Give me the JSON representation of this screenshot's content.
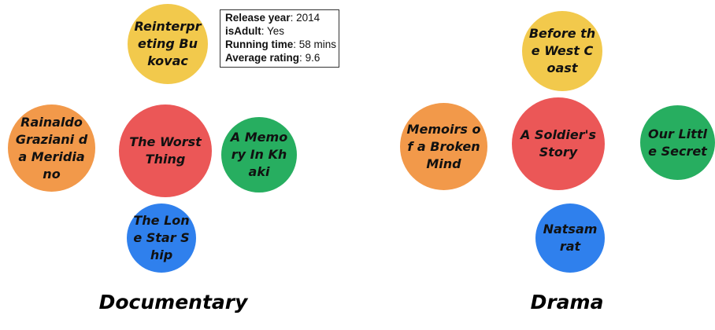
{
  "colors": {
    "yellow": "#f2c94c",
    "red": "#eb5757",
    "orange": "#f2994a",
    "green": "#27ae60",
    "blue": "#2f80ed"
  },
  "groups": [
    {
      "label": "Documentary",
      "nodes": [
        {
          "title": "Reinterpreting Bukovac",
          "color": "yellow"
        },
        {
          "title": "Rainaldo Graziani da Meridiano",
          "color": "orange"
        },
        {
          "title": "The Worst Thing",
          "color": "red"
        },
        {
          "title": "A Memory In Khaki",
          "color": "green"
        },
        {
          "title": "The Lone Star Ship",
          "color": "blue"
        }
      ]
    },
    {
      "label": "Drama",
      "nodes": [
        {
          "title": "Before the West Coast",
          "color": "yellow"
        },
        {
          "title": "Memoirs of a Broken Mind",
          "color": "orange"
        },
        {
          "title": "A Soldier's Story",
          "color": "red"
        },
        {
          "title": "Our Little Secret",
          "color": "green"
        },
        {
          "title": "Natsamrat",
          "color": "blue"
        }
      ]
    }
  ],
  "tooltip": {
    "release_year_label": "Release year",
    "release_year_value": "2014",
    "is_adult_label": "isAdult",
    "is_adult_value": "Yes",
    "running_time_label": "Running time",
    "running_time_value": "58 mins",
    "rating_label": "Average rating",
    "rating_value": "9.6"
  }
}
